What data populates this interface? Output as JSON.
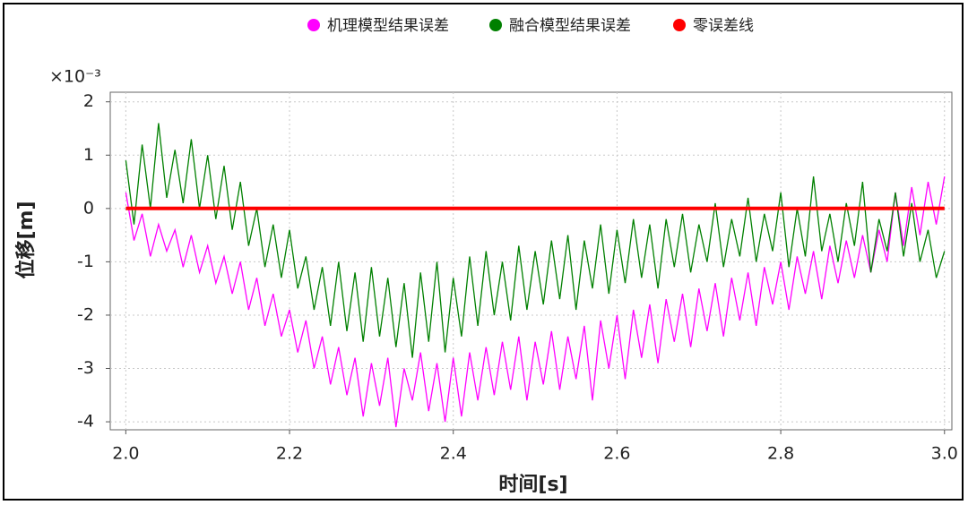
{
  "chart_data": {
    "type": "line",
    "xlabel": "时间[s]",
    "ylabel": "位移[m]",
    "y_multiplier": "×10⁻³",
    "x": [
      2.0,
      2.01,
      2.02,
      2.03,
      2.04,
      2.05,
      2.06,
      2.07,
      2.08,
      2.09,
      2.1,
      2.11,
      2.12,
      2.13,
      2.14,
      2.15,
      2.16,
      2.17,
      2.18,
      2.19,
      2.2,
      2.21,
      2.22,
      2.23,
      2.24,
      2.25,
      2.26,
      2.27,
      2.28,
      2.29,
      2.3,
      2.31,
      2.32,
      2.33,
      2.34,
      2.35,
      2.36,
      2.37,
      2.38,
      2.39,
      2.4,
      2.41,
      2.42,
      2.43,
      2.44,
      2.45,
      2.46,
      2.47,
      2.48,
      2.49,
      2.5,
      2.51,
      2.52,
      2.53,
      2.54,
      2.55,
      2.56,
      2.57,
      2.58,
      2.59,
      2.6,
      2.61,
      2.62,
      2.63,
      2.64,
      2.65,
      2.66,
      2.67,
      2.68,
      2.69,
      2.7,
      2.71,
      2.72,
      2.73,
      2.74,
      2.75,
      2.76,
      2.77,
      2.78,
      2.79,
      2.8,
      2.81,
      2.82,
      2.83,
      2.84,
      2.85,
      2.86,
      2.87,
      2.88,
      2.89,
      2.9,
      2.91,
      2.92,
      2.93,
      2.94,
      2.95,
      2.96,
      2.97,
      2.98,
      2.99,
      3.0
    ],
    "series": [
      {
        "name": "机理模型结果误差",
        "color": "#ff00ff",
        "values": [
          0.3,
          -0.6,
          -0.1,
          -0.9,
          -0.3,
          -0.8,
          -0.4,
          -1.1,
          -0.5,
          -1.2,
          -0.7,
          -1.4,
          -0.9,
          -1.6,
          -1.0,
          -1.9,
          -1.3,
          -2.2,
          -1.6,
          -2.4,
          -1.9,
          -2.7,
          -2.1,
          -3.0,
          -2.4,
          -3.3,
          -2.6,
          -3.5,
          -2.8,
          -3.9,
          -2.9,
          -3.7,
          -2.8,
          -4.1,
          -3.0,
          -3.6,
          -2.7,
          -3.8,
          -2.9,
          -4.0,
          -2.8,
          -3.9,
          -2.7,
          -3.6,
          -2.6,
          -3.5,
          -2.5,
          -3.4,
          -2.4,
          -3.6,
          -2.5,
          -3.3,
          -2.3,
          -3.4,
          -2.4,
          -3.2,
          -2.2,
          -3.6,
          -2.1,
          -3.0,
          -2.0,
          -3.2,
          -1.9,
          -2.8,
          -1.8,
          -2.9,
          -1.7,
          -2.5,
          -1.6,
          -2.6,
          -1.5,
          -2.3,
          -1.4,
          -2.4,
          -1.3,
          -2.1,
          -1.2,
          -2.2,
          -1.1,
          -1.8,
          -1.0,
          -1.9,
          -0.9,
          -1.6,
          -0.8,
          -1.7,
          -0.7,
          -1.4,
          -0.6,
          -1.3,
          -0.5,
          -1.2,
          -0.4,
          -1.0,
          0.3,
          -0.7,
          0.4,
          -0.5,
          0.5,
          -0.3,
          0.6
        ]
      },
      {
        "name": "融合模型结果误差",
        "color": "#008000",
        "values": [
          0.9,
          -0.3,
          1.2,
          0.0,
          1.6,
          0.2,
          1.1,
          0.1,
          1.3,
          0.0,
          1.0,
          -0.2,
          0.8,
          -0.4,
          0.5,
          -0.7,
          0.0,
          -1.1,
          -0.3,
          -1.3,
          -0.4,
          -1.5,
          -0.9,
          -1.9,
          -1.1,
          -2.2,
          -1.0,
          -2.3,
          -1.2,
          -2.5,
          -1.1,
          -2.4,
          -1.3,
          -2.6,
          -1.4,
          -2.8,
          -1.2,
          -2.5,
          -1.0,
          -2.7,
          -1.3,
          -2.4,
          -0.9,
          -2.2,
          -0.8,
          -2.0,
          -1.0,
          -2.1,
          -0.7,
          -1.9,
          -0.8,
          -1.8,
          -0.6,
          -1.7,
          -0.5,
          -1.9,
          -0.6,
          -1.5,
          -0.3,
          -1.6,
          -0.4,
          -1.4,
          -0.2,
          -1.3,
          -0.3,
          -1.5,
          -0.2,
          -1.1,
          -0.1,
          -1.2,
          -0.3,
          -1.0,
          0.1,
          -1.1,
          -0.2,
          -0.9,
          0.2,
          -1.0,
          -0.1,
          -0.8,
          0.3,
          -1.1,
          0.0,
          -0.9,
          0.6,
          -0.8,
          -0.1,
          -1.0,
          0.1,
          -0.7,
          0.5,
          -1.2,
          -0.2,
          -0.8,
          0.3,
          -0.9,
          0.1,
          -1.0,
          -0.4,
          -1.3,
          -0.8
        ]
      },
      {
        "name": "零误差线",
        "color": "#ff0000",
        "x": [
          2.0,
          3.0
        ],
        "values": [
          0,
          0
        ]
      }
    ],
    "xlim": [
      1.981,
      3.009
    ],
    "ylim": [
      -4.15,
      2.18
    ],
    "xticks": [
      {
        "value": 2,
        "label": "2.0"
      },
      2.2,
      2.4,
      2.6,
      2.8,
      {
        "value": 3,
        "label": "3.0"
      }
    ],
    "yticks": [
      2,
      1,
      0,
      -1,
      -2,
      -3,
      -4
    ],
    "grid": true,
    "legend": "top"
  }
}
